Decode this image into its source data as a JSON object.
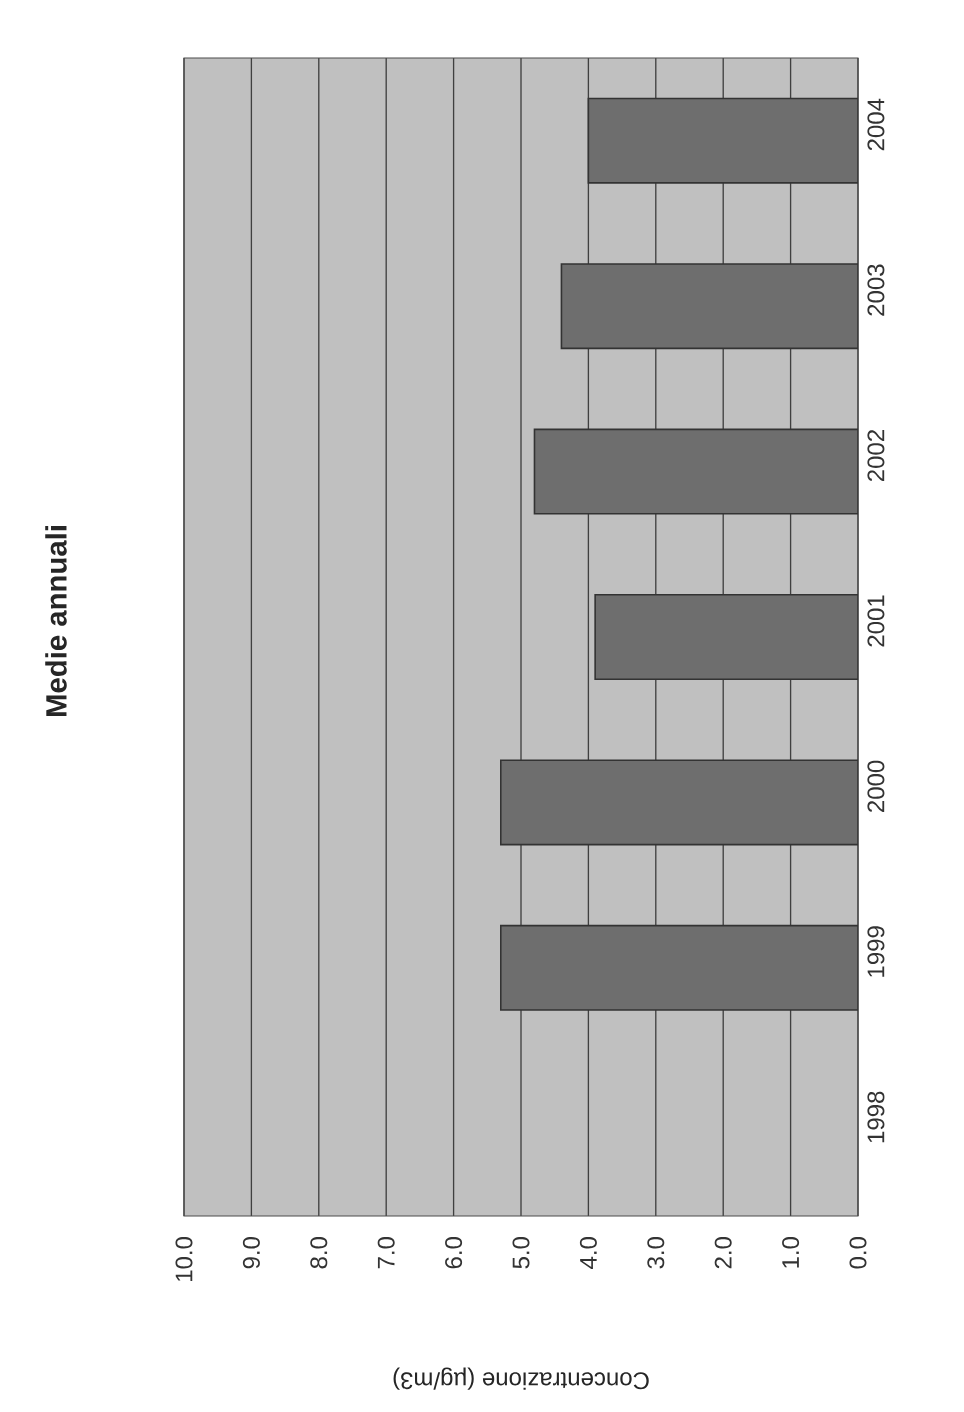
{
  "chart_data": {
    "type": "bar",
    "orientation": "horizontal",
    "title": "Medie annuali",
    "xlabel": "Concentrazione (µg/m3)",
    "categories": [
      "2004",
      "2003",
      "2002",
      "2001",
      "2000",
      "1999",
      "1998"
    ],
    "values": [
      4.0,
      4.4,
      4.8,
      3.9,
      5.3,
      5.3,
      null
    ],
    "color": "#6e6e6e",
    "xlim": [
      10,
      0
    ],
    "xticks": [
      {
        "value": 10,
        "label": "10.0"
      },
      {
        "value": 9,
        "label": "9.0"
      },
      {
        "value": 8,
        "label": "8.0"
      },
      {
        "value": 7,
        "label": "7.0"
      },
      {
        "value": 6,
        "label": "6.0"
      },
      {
        "value": 5,
        "label": "5.0"
      },
      {
        "value": 4,
        "label": "4.0"
      },
      {
        "value": 3,
        "label": "3.0"
      },
      {
        "value": 2,
        "label": "2.0"
      },
      {
        "value": 1,
        "label": "1.0"
      },
      {
        "value": 0,
        "label": "0.0"
      }
    ],
    "grid": "x"
  }
}
